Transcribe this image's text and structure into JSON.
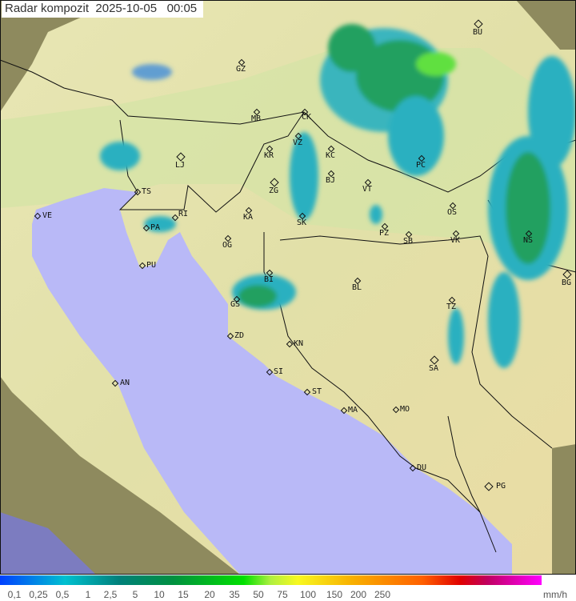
{
  "header": {
    "title": "Radar kompozit  2025-10-05   00:05"
  },
  "cities": [
    {
      "code": "BU"
    },
    {
      "code": "GZ"
    },
    {
      "code": "MB"
    },
    {
      "code": "CK"
    },
    {
      "code": "VZ"
    },
    {
      "code": "KR"
    },
    {
      "code": "KC"
    },
    {
      "code": "LJ"
    },
    {
      "code": "BJ"
    },
    {
      "code": "VT"
    },
    {
      "code": "PC"
    },
    {
      "code": "ZG"
    },
    {
      "code": "TS"
    },
    {
      "code": "VE"
    },
    {
      "code": "KA"
    },
    {
      "code": "SK"
    },
    {
      "code": "RI"
    },
    {
      "code": "PA"
    },
    {
      "code": "OG"
    },
    {
      "code": "PZ"
    },
    {
      "code": "SB"
    },
    {
      "code": "OS"
    },
    {
      "code": "VK"
    },
    {
      "code": "NS"
    },
    {
      "code": "PU"
    },
    {
      "code": "BI"
    },
    {
      "code": "BL"
    },
    {
      "code": "BG"
    },
    {
      "code": "GS"
    },
    {
      "code": "TZ"
    },
    {
      "code": "ZD"
    },
    {
      "code": "KN"
    },
    {
      "code": "SA"
    },
    {
      "code": "SI"
    },
    {
      "code": "AN"
    },
    {
      "code": "ST"
    },
    {
      "code": "MO"
    },
    {
      "code": "MA"
    },
    {
      "code": "DU"
    },
    {
      "code": "PG"
    }
  ],
  "legend": {
    "unit": "mm/h",
    "ticks": [
      "0,1",
      "0,25",
      "0,5",
      "1",
      "2,5",
      "5",
      "10",
      "15",
      "20",
      "35",
      "50",
      "75",
      "100",
      "150",
      "200",
      "250"
    ],
    "colors": [
      "#0050ff",
      "#00c8d0",
      "#008a50",
      "#00a030",
      "#00e000",
      "#f0f020",
      "#f0a000",
      "#ff5000",
      "#e00000",
      "#ff00ff"
    ]
  },
  "colors": {
    "sea": "#b9b9f7",
    "land": "#dfe4a8",
    "outside": "#8a8a60",
    "rain_light": "#2ab0c0",
    "rain_mid": "#20a060",
    "rain_heavy": "#40e020"
  }
}
